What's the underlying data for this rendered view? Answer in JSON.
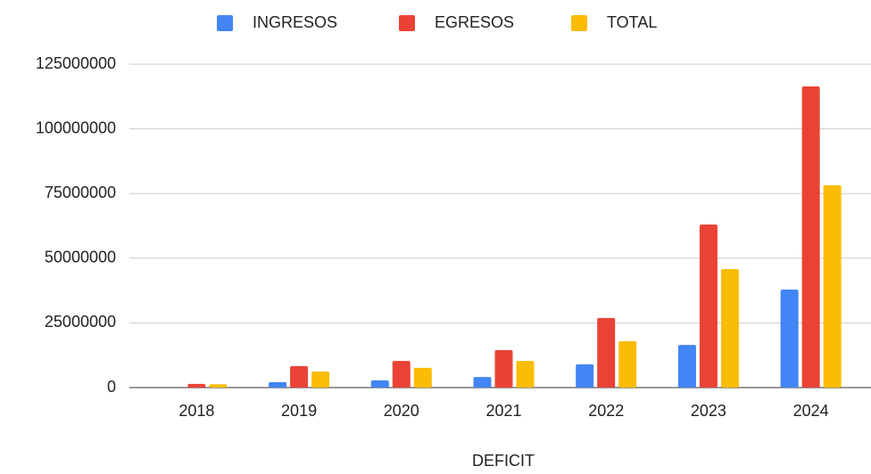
{
  "chart_data": {
    "type": "bar",
    "x_label": "DEFICIT",
    "categories": [
      "2018",
      "2019",
      "2020",
      "2021",
      "2022",
      "2023",
      "2024"
    ],
    "series": [
      {
        "name": "INGRESOS",
        "color": "#4285f4",
        "values": [
          0,
          2100000,
          2800000,
          4100000,
          9000000,
          16500000,
          37900000
        ]
      },
      {
        "name": "EGRESOS",
        "color": "#ea4335",
        "values": [
          1400000,
          8300000,
          10300000,
          14500000,
          26900000,
          63000000,
          116400000
        ]
      },
      {
        "name": "TOTAL",
        "color": "#fbbc04",
        "values": [
          1300000,
          6200000,
          7600000,
          10300000,
          17900000,
          45800000,
          78200000
        ]
      }
    ],
    "ylim": [
      0,
      125000000
    ],
    "yticks": [
      0,
      25000000,
      50000000,
      75000000,
      100000000,
      125000000
    ],
    "grid": true,
    "legend": "top"
  }
}
